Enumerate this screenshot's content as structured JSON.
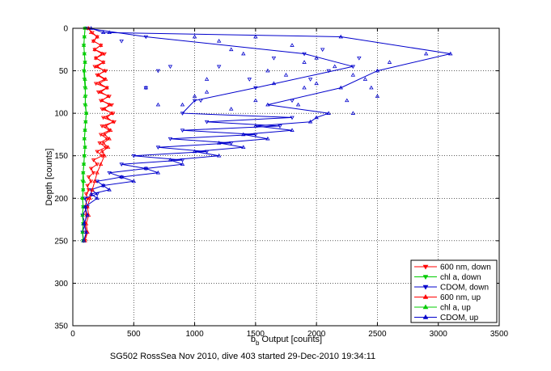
{
  "chart_data": {
    "type": "scatter",
    "title": "",
    "xlabel_main": "b",
    "xlabel_sub": "b",
    "xlabel_rest": " Output [counts]",
    "ylabel": "Depth [counts]",
    "caption": "SG502 RossSea Nov 2010, dive 403 started 29-Dec-2010 19:34:11",
    "xlim": [
      0,
      3500
    ],
    "ylim": [
      0,
      350
    ],
    "y_reversed": true,
    "grid": true,
    "legend_position": "bottom-right",
    "x_ticks": [
      "0",
      "500",
      "1000",
      "1500",
      "2000",
      "2500",
      "3000",
      "3500"
    ],
    "y_ticks": [
      "0",
      "50",
      "100",
      "150",
      "200",
      "250",
      "300",
      "350"
    ],
    "series": [
      {
        "name": "600 nm, down",
        "color": "#ff0000",
        "marker": "triangle-down",
        "line": true,
        "points": [
          [
            120,
            0
          ],
          [
            160,
            5
          ],
          [
            200,
            10
          ],
          [
            170,
            15
          ],
          [
            230,
            20
          ],
          [
            180,
            25
          ],
          [
            260,
            30
          ],
          [
            190,
            35
          ],
          [
            250,
            40
          ],
          [
            180,
            45
          ],
          [
            270,
            50
          ],
          [
            200,
            55
          ],
          [
            260,
            60
          ],
          [
            190,
            65
          ],
          [
            280,
            70
          ],
          [
            210,
            75
          ],
          [
            300,
            80
          ],
          [
            230,
            85
          ],
          [
            320,
            90
          ],
          [
            240,
            95
          ],
          [
            330,
            100
          ],
          [
            250,
            105
          ],
          [
            340,
            110
          ],
          [
            240,
            115
          ],
          [
            300,
            120
          ],
          [
            230,
            125
          ],
          [
            280,
            130
          ],
          [
            220,
            135
          ],
          [
            270,
            140
          ],
          [
            200,
            145
          ],
          [
            240,
            150
          ],
          [
            170,
            155
          ],
          [
            200,
            160
          ],
          [
            150,
            165
          ],
          [
            170,
            170
          ],
          [
            130,
            175
          ],
          [
            150,
            180
          ],
          [
            120,
            185
          ],
          [
            130,
            190
          ],
          [
            110,
            195
          ],
          [
            120,
            200
          ],
          [
            100,
            210
          ],
          [
            110,
            220
          ],
          [
            100,
            230
          ],
          [
            110,
            240
          ],
          [
            100,
            250
          ]
        ]
      },
      {
        "name": "chl a, down",
        "color": "#00cc00",
        "marker": "triangle-down",
        "line": true,
        "points": [
          [
            100,
            0
          ],
          [
            95,
            10
          ],
          [
            90,
            20
          ],
          [
            95,
            30
          ],
          [
            100,
            40
          ],
          [
            90,
            50
          ],
          [
            95,
            60
          ],
          [
            100,
            70
          ],
          [
            105,
            80
          ],
          [
            100,
            90
          ],
          [
            110,
            100
          ],
          [
            105,
            110
          ],
          [
            100,
            120
          ],
          [
            95,
            130
          ],
          [
            100,
            140
          ],
          [
            95,
            150
          ],
          [
            90,
            160
          ],
          [
            85,
            170
          ],
          [
            80,
            180
          ],
          [
            85,
            190
          ],
          [
            80,
            200
          ],
          [
            85,
            210
          ],
          [
            80,
            220
          ],
          [
            85,
            230
          ],
          [
            80,
            240
          ],
          [
            85,
            250
          ]
        ]
      },
      {
        "name": "CDOM, down",
        "color": "#0000cc",
        "marker": "triangle-down",
        "line": true,
        "points": [
          [
            120,
            0
          ],
          [
            600,
            10
          ],
          [
            1900,
            30
          ],
          [
            2300,
            45
          ],
          [
            1500,
            70
          ],
          [
            1000,
            85
          ],
          [
            900,
            100
          ],
          [
            1800,
            105
          ],
          [
            1100,
            110
          ],
          [
            1700,
            115
          ],
          [
            900,
            120
          ],
          [
            1500,
            125
          ],
          [
            800,
            130
          ],
          [
            1300,
            135
          ],
          [
            700,
            140
          ],
          [
            1100,
            145
          ],
          [
            500,
            150
          ],
          [
            900,
            155
          ],
          [
            400,
            160
          ],
          [
            600,
            165
          ],
          [
            300,
            170
          ],
          [
            400,
            175
          ],
          [
            200,
            180
          ],
          [
            250,
            185
          ],
          [
            150,
            190
          ],
          [
            200,
            195
          ],
          [
            100,
            200
          ],
          [
            120,
            210
          ],
          [
            80,
            220
          ],
          [
            100,
            230
          ],
          [
            80,
            240
          ],
          [
            90,
            250
          ]
        ]
      },
      {
        "name": "600 nm, up",
        "color": "#ff0000",
        "marker": "triangle-up",
        "line": true,
        "points": [
          [
            100,
            250
          ],
          [
            120,
            240
          ],
          [
            110,
            230
          ],
          [
            130,
            220
          ],
          [
            120,
            210
          ],
          [
            140,
            200
          ],
          [
            160,
            190
          ],
          [
            180,
            180
          ],
          [
            200,
            170
          ],
          [
            230,
            160
          ],
          [
            260,
            150
          ],
          [
            240,
            145
          ],
          [
            290,
            140
          ],
          [
            250,
            135
          ],
          [
            300,
            130
          ],
          [
            260,
            125
          ],
          [
            310,
            120
          ],
          [
            270,
            115
          ],
          [
            330,
            110
          ],
          [
            280,
            105
          ],
          [
            320,
            100
          ],
          [
            260,
            95
          ],
          [
            300,
            90
          ],
          [
            240,
            85
          ],
          [
            290,
            80
          ],
          [
            230,
            75
          ],
          [
            280,
            70
          ],
          [
            220,
            65
          ],
          [
            270,
            60
          ],
          [
            210,
            55
          ],
          [
            260,
            50
          ],
          [
            200,
            45
          ],
          [
            250,
            40
          ],
          [
            190,
            35
          ],
          [
            240,
            30
          ],
          [
            180,
            25
          ],
          [
            230,
            20
          ],
          [
            170,
            15
          ],
          [
            200,
            10
          ],
          [
            150,
            5
          ],
          [
            130,
            0
          ]
        ]
      },
      {
        "name": "chl a, up",
        "color": "#00cc00",
        "marker": "triangle-up",
        "line": true,
        "points": [
          [
            85,
            250
          ],
          [
            80,
            240
          ],
          [
            85,
            230
          ],
          [
            80,
            220
          ],
          [
            85,
            210
          ],
          [
            80,
            200
          ],
          [
            85,
            190
          ],
          [
            90,
            180
          ],
          [
            85,
            170
          ],
          [
            90,
            160
          ],
          [
            95,
            150
          ],
          [
            100,
            140
          ],
          [
            95,
            130
          ],
          [
            100,
            120
          ],
          [
            105,
            110
          ],
          [
            110,
            100
          ],
          [
            105,
            90
          ],
          [
            100,
            80
          ],
          [
            105,
            70
          ],
          [
            100,
            60
          ],
          [
            95,
            50
          ],
          [
            100,
            40
          ],
          [
            95,
            30
          ],
          [
            90,
            20
          ],
          [
            95,
            10
          ],
          [
            100,
            0
          ]
        ]
      },
      {
        "name": "CDOM, up",
        "color": "#0000cc",
        "marker": "triangle-up",
        "line": true,
        "points": [
          [
            90,
            250
          ],
          [
            110,
            240
          ],
          [
            90,
            230
          ],
          [
            120,
            220
          ],
          [
            100,
            210
          ],
          [
            200,
            200
          ],
          [
            150,
            195
          ],
          [
            300,
            190
          ],
          [
            250,
            185
          ],
          [
            500,
            180
          ],
          [
            400,
            175
          ],
          [
            700,
            170
          ],
          [
            600,
            165
          ],
          [
            900,
            160
          ],
          [
            800,
            155
          ],
          [
            1200,
            150
          ],
          [
            1000,
            145
          ],
          [
            1400,
            140
          ],
          [
            1200,
            135
          ],
          [
            1600,
            130
          ],
          [
            1400,
            125
          ],
          [
            1800,
            120
          ],
          [
            1500,
            115
          ],
          [
            1950,
            110
          ],
          [
            2000,
            105
          ],
          [
            2100,
            100
          ],
          [
            1600,
            90
          ],
          [
            2200,
            70
          ],
          [
            2500,
            50
          ],
          [
            3100,
            30
          ],
          [
            2200,
            10
          ],
          [
            250,
            5
          ],
          [
            150,
            0
          ]
        ]
      }
    ],
    "scatter_points": [
      {
        "series": 5,
        "points": [
          [
            300,
            5
          ],
          [
            1000,
            10
          ],
          [
            1200,
            15
          ],
          [
            1500,
            10
          ],
          [
            1300,
            25
          ],
          [
            1400,
            30
          ],
          [
            1800,
            20
          ],
          [
            1900,
            40
          ],
          [
            2000,
            35
          ],
          [
            2150,
            45
          ],
          [
            2300,
            55
          ],
          [
            2400,
            60
          ],
          [
            2600,
            40
          ],
          [
            2900,
            30
          ],
          [
            2500,
            80
          ],
          [
            2300,
            100
          ],
          [
            600,
            70
          ],
          [
            900,
            90
          ],
          [
            1100,
            75
          ],
          [
            1900,
            70
          ],
          [
            1750,
            55
          ],
          [
            1600,
            50
          ],
          [
            1500,
            85
          ],
          [
            1300,
            95
          ],
          [
            1000,
            80
          ],
          [
            700,
            90
          ],
          [
            1100,
            60
          ],
          [
            2000,
            65
          ],
          [
            2250,
            85
          ],
          [
            2450,
            70
          ],
          [
            1850,
            90
          ],
          [
            1650,
            65
          ]
        ]
      },
      {
        "series": 2,
        "points": [
          [
            400,
            15
          ],
          [
            700,
            50
          ],
          [
            600,
            70
          ],
          [
            1050,
            85
          ],
          [
            1650,
            35
          ],
          [
            1800,
            85
          ],
          [
            2100,
            50
          ],
          [
            2350,
            35
          ],
          [
            1950,
            60
          ],
          [
            1450,
            60
          ],
          [
            1200,
            45
          ],
          [
            800,
            45
          ],
          [
            2050,
            25
          ]
        ]
      }
    ]
  }
}
